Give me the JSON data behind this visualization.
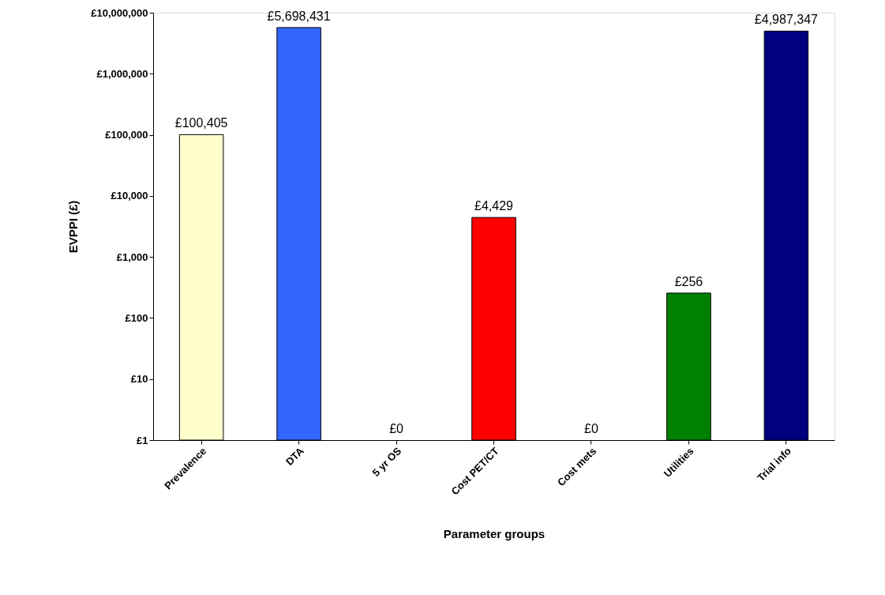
{
  "chart_data": {
    "type": "bar",
    "xlabel": "Parameter groups",
    "ylabel": "EVPPI (£)",
    "categories": [
      "Prevalence",
      "DTA",
      "5 yr OS",
      "Cost PET/CT",
      "Cost mets",
      "Utilities",
      "Trial info"
    ],
    "values": [
      100405,
      5698431,
      null,
      4429,
      null,
      256,
      4987347
    ],
    "value_labels": [
      "£100,405",
      "£5,698,431",
      "£0",
      "£4,429",
      "£0",
      "£256",
      "£4,987,347"
    ],
    "colors": [
      "#ffffcc",
      "#3366ff",
      null,
      "#ff0000",
      null,
      "#008000",
      "#000080"
    ],
    "log": true,
    "ylim": [
      1,
      10000000
    ],
    "yticks": [
      {
        "value": 1,
        "label": "£1"
      },
      {
        "value": 10,
        "label": "£10"
      },
      {
        "value": 100,
        "label": "£100"
      },
      {
        "value": 1000,
        "label": "£1,000"
      },
      {
        "value": 10000,
        "label": "£10,000"
      },
      {
        "value": 100000,
        "label": "£100,000"
      },
      {
        "value": 1000000,
        "label": "£1,000,000"
      },
      {
        "value": 10000000,
        "label": "£10,000,000"
      }
    ],
    "grid": false
  }
}
